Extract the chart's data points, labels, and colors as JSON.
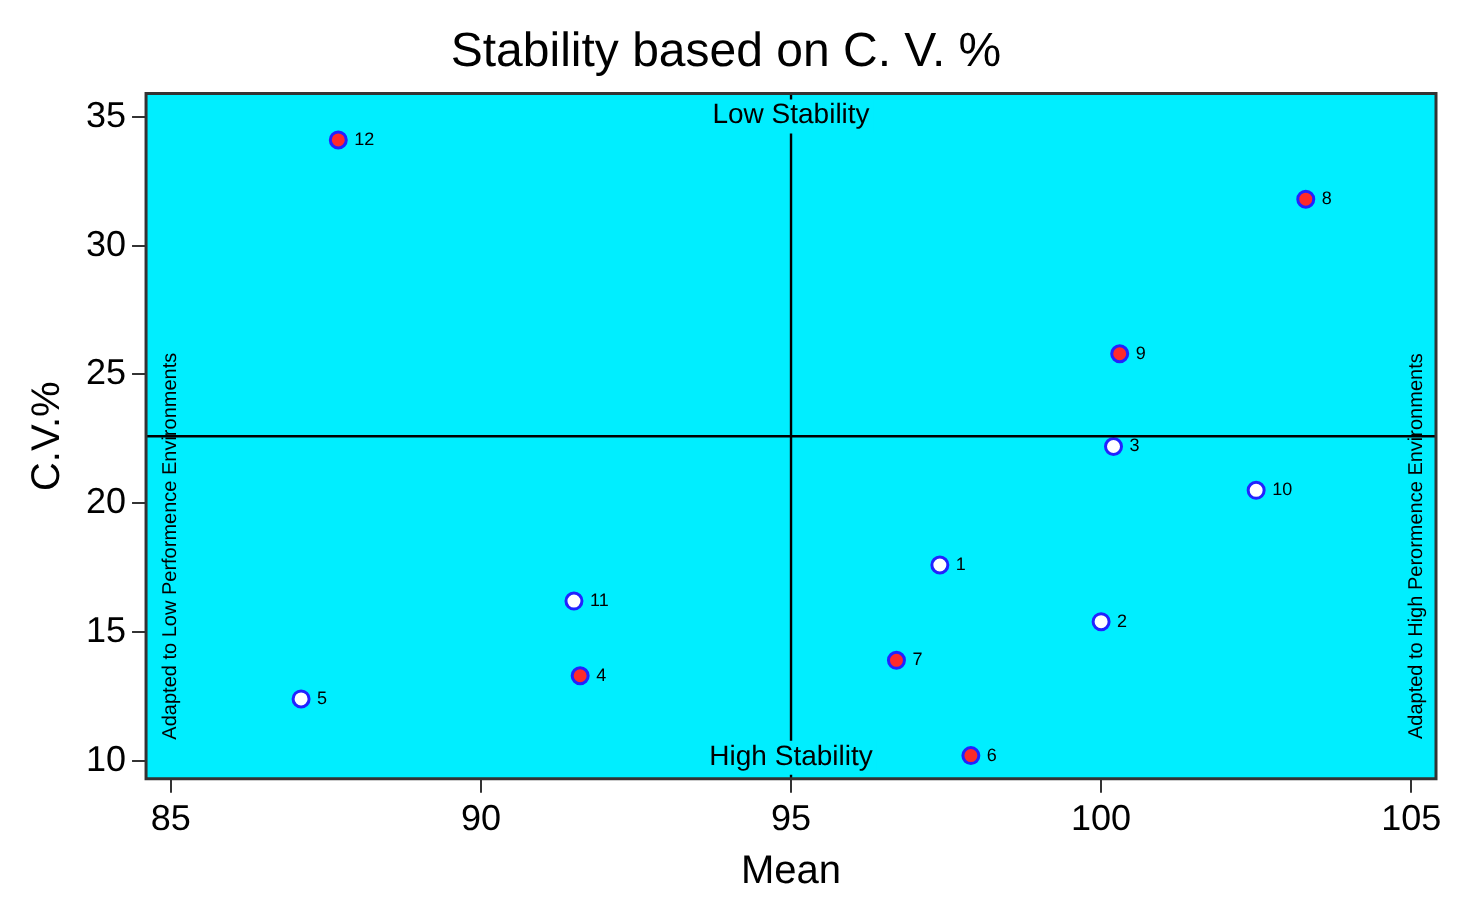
{
  "chart_data": {
    "type": "scatter",
    "title": "Stability based on C. V. %",
    "xlabel": "Mean",
    "ylabel": "C.V.%",
    "xlim": [
      84.6,
      105.4
    ],
    "xticks": [
      85,
      90,
      95,
      100,
      105
    ],
    "ylim": [
      9.3,
      35.9
    ],
    "yticks": [
      10,
      15,
      20,
      25,
      30,
      35
    ],
    "grid": false,
    "legend": false,
    "marker": "circle",
    "series": [
      {
        "color": "#ff2a2a",
        "x": [
          87.7,
          103.3,
          100.3,
          96.7,
          91.6,
          97.9
        ],
        "values": [
          34.1,
          31.8,
          25.8,
          13.9,
          13.3,
          10.2
        ]
      },
      {
        "color": "#ffffff",
        "x": [
          91.5,
          87.1,
          97.4,
          100.0,
          100.2,
          102.5
        ],
        "values": [
          16.2,
          12.4,
          17.6,
          15.4,
          22.2,
          20.5
        ]
      }
    ],
    "ref_lines": [
      {
        "axis": "x",
        "value": 95,
        "color": "#000000"
      },
      {
        "axis": "y",
        "value": 22.6,
        "color": "#000000"
      }
    ],
    "annotations": [
      "Low Stability",
      "High Stability",
      "Adapted to Low Performence Environments",
      "Adapted to High Perormence Environments",
      {
        "text": "12",
        "x": 87.7,
        "y": 34.1
      },
      {
        "text": "8",
        "x": 103.3,
        "y": 31.8
      },
      {
        "text": "9",
        "x": 100.3,
        "y": 25.8
      },
      {
        "text": "7",
        "x": 96.7,
        "y": 13.9
      },
      {
        "text": "4",
        "x": 91.6,
        "y": 13.3
      },
      {
        "text": "6",
        "x": 97.9,
        "y": 10.2
      },
      {
        "text": "11",
        "x": 91.5,
        "y": 16.2
      },
      {
        "text": "5",
        "x": 87.1,
        "y": 12.4
      },
      {
        "text": "1",
        "x": 97.4,
        "y": 17.6
      },
      {
        "text": "2",
        "x": 100.0,
        "y": 15.4
      },
      {
        "text": "3",
        "x": 100.2,
        "y": 22.2
      },
      {
        "text": "10",
        "x": 102.5,
        "y": 20.5
      }
    ]
  }
}
